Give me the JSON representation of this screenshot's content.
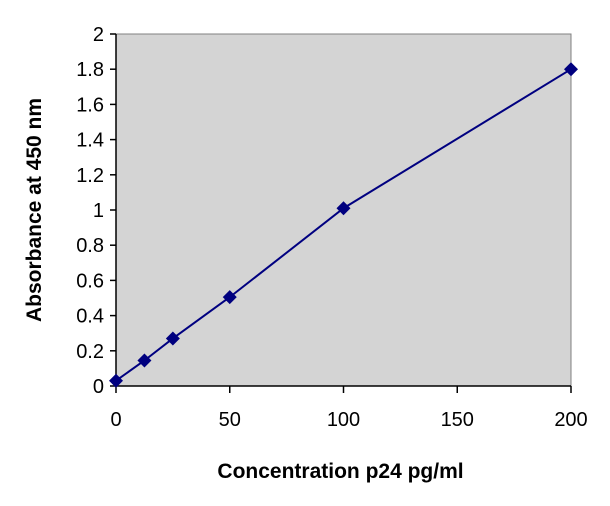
{
  "chart_data": {
    "type": "line",
    "title": "",
    "xlabel": "Concentration p24 pg/ml",
    "ylabel": "Absorbance at 450 nm",
    "xlim": [
      0,
      200
    ],
    "ylim": [
      0,
      2
    ],
    "x_ticks": [
      0,
      50,
      100,
      150,
      200
    ],
    "y_ticks": [
      0,
      0.2,
      0.4,
      0.6,
      0.8,
      1,
      1.2,
      1.4,
      1.6,
      1.8,
      2
    ],
    "x_tick_labels": [
      "0",
      "50",
      "100",
      "150",
      "200"
    ],
    "y_tick_labels": [
      "0",
      "0.2",
      "0.4",
      "0.6",
      "0.8",
      "1",
      "1.2",
      "1.4",
      "1.6",
      "1.8",
      "2"
    ],
    "grid": false,
    "legend": "none",
    "colors": {
      "plot_background": "#d4d4d4",
      "series_line": "#000080",
      "marker": "#00007f"
    },
    "series": [
      {
        "marker": "diamond",
        "x": [
          0,
          12.5,
          25,
          50,
          100,
          200
        ],
        "y": [
          0.03,
          0.145,
          0.27,
          0.505,
          1.01,
          1.8
        ]
      }
    ]
  }
}
